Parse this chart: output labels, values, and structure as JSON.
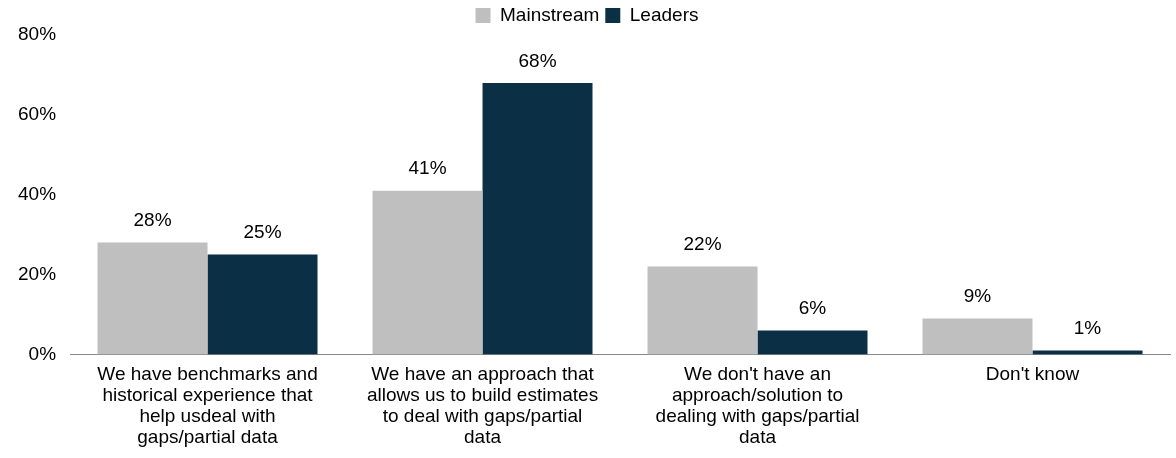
{
  "chart_data": {
    "type": "bar",
    "categories": [
      "We have benchmarks and historical experience that help usdeal with gaps/partial data",
      "We have an approach that allows us to build estimates to deal with gaps/partial data",
      "We don't have an approach/solution to dealing with gaps/partial data",
      "Don't know"
    ],
    "series": [
      {
        "name": "Mainstream",
        "color": "#bfbfbf",
        "values": [
          28,
          41,
          22,
          9
        ],
        "value_labels": [
          "28%",
          "41%",
          "22%",
          "9%"
        ]
      },
      {
        "name": "Leaders",
        "color": "#0b3045",
        "values": [
          25,
          68,
          6,
          1
        ],
        "value_labels": [
          "25%",
          "68%",
          "6%",
          "1%"
        ]
      }
    ],
    "ylim": [
      0,
      80
    ],
    "yticks": [
      {
        "value": 0,
        "label": "0%"
      },
      {
        "value": 20,
        "label": "20%"
      },
      {
        "value": 40,
        "label": "40%"
      },
      {
        "value": 60,
        "label": "60%"
      },
      {
        "value": 80,
        "label": "80%"
      }
    ],
    "grid": false,
    "legend": "top"
  }
}
